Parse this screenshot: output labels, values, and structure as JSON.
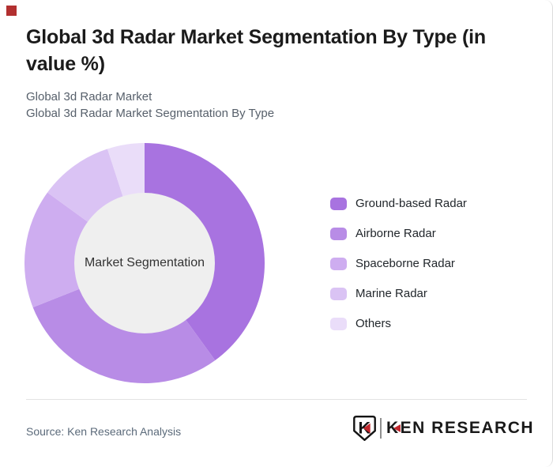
{
  "header": {
    "title": "Global 3d Radar Market Segmentation By Type (in value %)",
    "subtitle_line1": "Global 3d Radar Market",
    "subtitle_line2": "Global 3d Radar Market Segmentation By Type"
  },
  "chart_data": {
    "type": "pie",
    "subtype": "donut",
    "title": "Global 3d Radar Market Segmentation By Type (in value %)",
    "center_label": "Market Segmentation",
    "labels": [
      "Ground-based Radar",
      "Airborne Radar",
      "Spaceborne Radar",
      "Marine Radar",
      "Others"
    ],
    "values": [
      40,
      29,
      16,
      10,
      5
    ],
    "unit": "%",
    "colors": [
      "#a873e0",
      "#b88ce6",
      "#ceadf0",
      "#dac3f4",
      "#eaddf9"
    ],
    "hole_color": "#efefef",
    "center_label_color": "#333333",
    "start_angle_deg": 0,
    "direction": "clockwise",
    "legend_position": "right"
  },
  "footer": {
    "source": "Source: Ken Research Analysis",
    "logo": {
      "badge_letter": "K",
      "brand_first_letter": "K",
      "brand_rest": "EN RESEARCH",
      "accent_red": "#c1272d",
      "ink": "#191919"
    }
  },
  "decor": {
    "red_square_color": "#b23030"
  }
}
